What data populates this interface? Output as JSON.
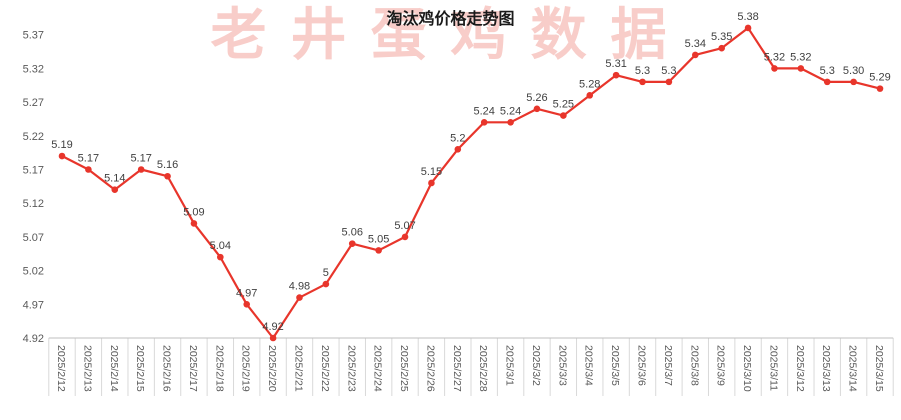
{
  "title": "淘汰鸡价格走势图",
  "watermark": "老井蛋鸡数据",
  "chart_data": {
    "type": "line",
    "title": "淘汰鸡价格走势图",
    "categories": [
      "2025/2/12",
      "2025/2/13",
      "2025/2/14",
      "2025/2/15",
      "2025/2/16",
      "2025/2/17",
      "2025/2/18",
      "2025/2/19",
      "2025/2/20",
      "2025/2/21",
      "2025/2/22",
      "2025/2/23",
      "2025/2/24",
      "2025/2/25",
      "2025/2/26",
      "2025/2/27",
      "2025/2/28",
      "2025/3/1",
      "2025/3/2",
      "2025/3/3",
      "2025/3/4",
      "2025/3/5",
      "2025/3/6",
      "2025/3/7",
      "2025/3/8",
      "2025/3/9",
      "2025/3/10",
      "2025/3/11",
      "2025/3/12",
      "2025/3/13",
      "2025/3/14",
      "2025/3/15"
    ],
    "values": [
      5.19,
      5.17,
      5.14,
      5.17,
      5.16,
      5.09,
      5.04,
      4.97,
      4.92,
      4.98,
      5.0,
      5.06,
      5.05,
      5.07,
      5.15,
      5.2,
      5.24,
      5.24,
      5.26,
      5.25,
      5.28,
      5.31,
      5.3,
      5.3,
      5.34,
      5.35,
      5.38,
      5.32,
      5.32,
      5.3,
      5.3,
      5.29
    ],
    "point_labels": [
      "5.19",
      "5.17",
      "5.14",
      "5.17",
      "5.16",
      "5.09",
      "5.04",
      "4.97",
      "4.92",
      "4.98",
      "5",
      "5.06",
      "5.05",
      "5.07",
      "5.15",
      "5.2",
      "5.24",
      "5.24",
      "5.26",
      "5.25",
      "5.28",
      "5.31",
      "5.3",
      "5.3",
      "5.34",
      "5.35",
      "5.38",
      "5.32",
      "5.32",
      "5.3",
      "5.30",
      "5.29"
    ],
    "yticks": [
      4.92,
      4.97,
      5.02,
      5.07,
      5.12,
      5.17,
      5.22,
      5.27,
      5.32,
      5.37
    ],
    "ylim": [
      4.92,
      5.4
    ],
    "xlabel": "",
    "ylabel": "",
    "grid": false,
    "legend": "none",
    "line_color": "#e8352b",
    "data_label_color": "#404040",
    "axis_text_color": "#595959",
    "axis_line_color": "#bfbfbf",
    "tick_color": "#d9d9d9",
    "watermark_color": "rgba(233,90,75,0.30)"
  }
}
